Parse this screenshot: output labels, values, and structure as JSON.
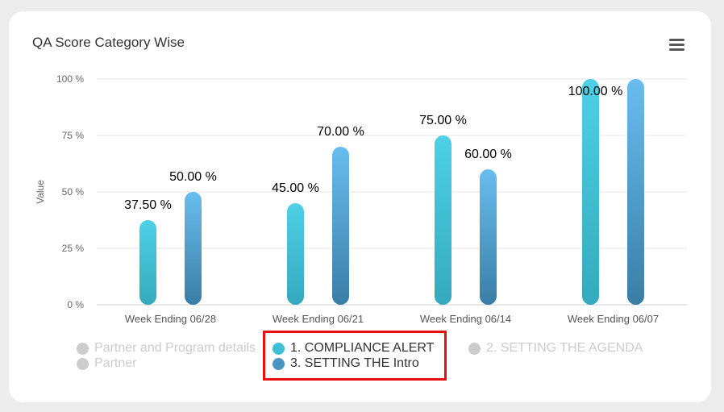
{
  "chart_data": {
    "type": "bar",
    "title": "QA Score Category Wise",
    "ylabel": "Value",
    "ylim": [
      0,
      100
    ],
    "yticks": [
      "0 %",
      "25 %",
      "50 %",
      "75 %",
      "100 %"
    ],
    "yticks_values": [
      0,
      25,
      50,
      75,
      100
    ],
    "categories": [
      "Week Ending 06/28",
      "Week Ending 06/21",
      "Week Ending 06/14",
      "Week Ending 06/07"
    ],
    "series": [
      {
        "name": "1. COMPLIANCE ALERT",
        "values": [
          37.5,
          45,
          75,
          100
        ],
        "labels": [
          "37.50 %",
          "45.00 %",
          "75.00 %",
          "100.00 %"
        ],
        "color_top": "#4ed0e6",
        "color_bottom": "#35a9be"
      },
      {
        "name": "3. SETTING THE Intro",
        "values": [
          50,
          70,
          60,
          100
        ],
        "labels": [
          "50.00 %",
          "70.00 %",
          "60.00 %",
          ""
        ],
        "color_top": "#68bdee",
        "color_bottom": "#3a7ea6"
      }
    ],
    "legend": [
      {
        "name": "Partner and Program details",
        "active": false
      },
      {
        "name": "1. COMPLIANCE ALERT",
        "active": true,
        "color": "#3fbfd6"
      },
      {
        "name": "2. SETTING THE AGENDA",
        "active": false
      },
      {
        "name": "Partner",
        "active": false
      },
      {
        "name": "3. SETTING THE Intro",
        "active": true,
        "color": "#4a94c2"
      }
    ],
    "grid": true,
    "legend_placement": "bottom"
  },
  "colors": {
    "highlight_border": "#e8100f",
    "inactive": "#cccccc"
  },
  "icons": {
    "menu": "hamburger-menu-icon"
  }
}
